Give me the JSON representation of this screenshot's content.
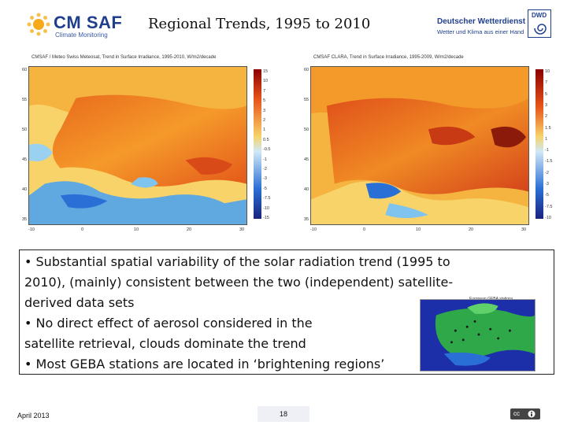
{
  "header": {
    "logo_text": "CM SAF",
    "logo_subtext": "Climate Monitoring",
    "title": "Regional Trends, 1995 to 2010",
    "dwd_line1": "Deutscher Wetterdienst",
    "dwd_line2": "Wetter und Klima aus einer Hand",
    "dwd_badge": "DWD"
  },
  "maps": [
    {
      "caption": "CMSAF / Meteo Swiss Meteosat, Trend in Surface Irradiance, 1995-2010, W/m2/decade",
      "colorbar_labels": [
        "15",
        "10",
        "7",
        "5",
        "3",
        "2",
        "1",
        "0.5",
        "-0.5",
        "-1",
        "-2",
        "-3",
        "-5",
        "-7.5",
        "-10",
        "-15"
      ],
      "x_ticks": [
        "-10",
        "0",
        "10",
        "20",
        "30"
      ],
      "y_ticks": [
        "60",
        "55",
        "50",
        "45",
        "40",
        "35"
      ]
    },
    {
      "caption": "CMSAF CLARA, Trend in Surface Irradiance, 1995-2009, W/m2/decade",
      "colorbar_labels": [
        "10",
        "7",
        "5",
        "3",
        "2",
        "1.5",
        "1",
        "-1",
        "-1.5",
        "-2",
        "-3",
        "-5",
        "-7.5",
        "-10"
      ],
      "x_ticks": [
        "-10",
        "0",
        "10",
        "20",
        "30"
      ],
      "y_ticks": [
        "60",
        "55",
        "50",
        "45",
        "40",
        "35"
      ]
    }
  ],
  "bullets": [
    "• Substantial spatial variability of the solar radiation trend (1995 to",
    "   2010), (mainly) consistent between the two (independent) satellite-",
    "   derived data sets",
    "• No direct effect of aerosol considered in the",
    "   satellite retrieval, clouds dominate the trend",
    "• Most GEBA stations are located in ‘brightening regions’"
  ],
  "inset": {
    "caption": "European GEBA stations ..."
  },
  "footer": {
    "date": "April 2013",
    "page": "18",
    "license": "cc"
  },
  "colors": {
    "brand_blue": "#1f3f8c",
    "warm": "#e8541a",
    "cool": "#2a6fd6"
  }
}
